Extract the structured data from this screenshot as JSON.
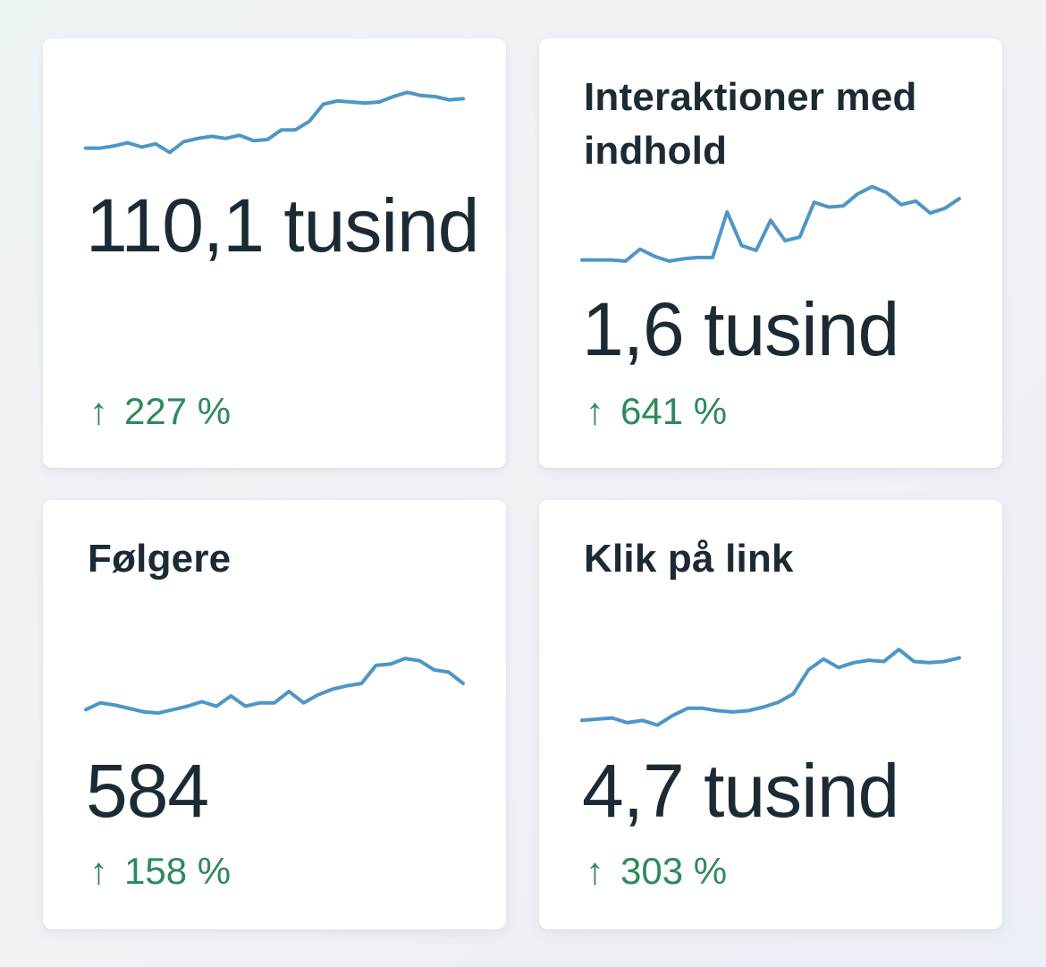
{
  "accent_color": "#4e96c6",
  "positive_color": "#2d8a5c",
  "cards": [
    {
      "title": "",
      "value": "110,1 tusind",
      "change_arrow": "↑",
      "change": "227 %",
      "trend_icon": "arrow-up-icon",
      "sparkline": [
        12,
        12,
        14,
        17,
        13,
        16,
        8,
        18,
        21,
        23,
        21,
        24,
        19,
        20,
        29,
        29,
        37,
        53,
        56,
        55,
        54,
        55,
        60,
        64,
        61,
        60,
        57,
        58
      ]
    },
    {
      "title": "Interaktioner med indhold",
      "value": "1,6 tusind",
      "change_arrow": "↑",
      "change": "641 %",
      "trend_icon": "arrow-up-icon",
      "sparkline": [
        7,
        7,
        7,
        6,
        16,
        10,
        6,
        8,
        9,
        9,
        47,
        19,
        15,
        40,
        23,
        26,
        55,
        51,
        52,
        62,
        68,
        63,
        53,
        56,
        46,
        50,
        58
      ]
    },
    {
      "title": "Følgere",
      "value": "584",
      "change_arrow": "↑",
      "change": "158 %",
      "trend_icon": "arrow-up-icon",
      "sparkline": [
        10,
        16,
        14,
        11,
        8,
        7,
        10,
        13,
        17,
        13,
        22,
        13,
        16,
        16,
        26,
        16,
        23,
        28,
        31,
        33,
        49,
        50,
        55,
        53,
        45,
        43,
        33
      ]
    },
    {
      "title": "Klik på link",
      "value": "4,7 tusind",
      "change_arrow": "↑",
      "change": "303 %",
      "trend_icon": "arrow-up-icon",
      "sparkline": [
        8,
        9,
        10,
        6,
        8,
        4,
        12,
        18,
        18,
        16,
        15,
        16,
        19,
        23,
        30,
        50,
        59,
        52,
        56,
        58,
        57,
        67,
        57,
        56,
        57,
        60
      ]
    }
  ]
}
